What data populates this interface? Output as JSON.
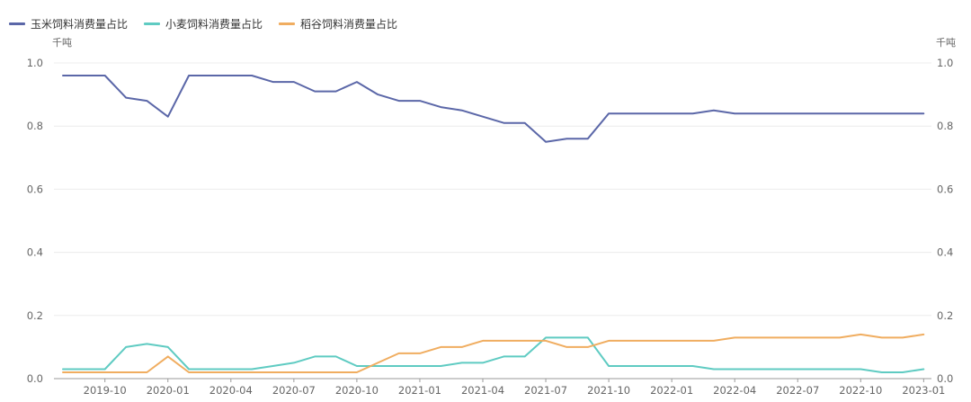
{
  "chart_data": {
    "type": "line",
    "x": [
      "2019-08",
      "2019-09",
      "2019-10",
      "2019-11",
      "2019-12",
      "2020-01",
      "2020-02",
      "2020-03",
      "2020-04",
      "2020-05",
      "2020-06",
      "2020-07",
      "2020-08",
      "2020-09",
      "2020-10",
      "2020-11",
      "2020-12",
      "2021-01",
      "2021-02",
      "2021-03",
      "2021-04",
      "2021-05",
      "2021-06",
      "2021-07",
      "2021-08",
      "2021-09",
      "2021-10",
      "2021-11",
      "2021-12",
      "2022-01",
      "2022-02",
      "2022-03",
      "2022-04",
      "2022-05",
      "2022-06",
      "2022-07",
      "2022-08",
      "2022-09",
      "2022-10",
      "2022-11",
      "2022-12",
      "2023-01"
    ],
    "series": [
      {
        "name": "玉米饲料消费量占比",
        "color": "#5b67a8",
        "values": [
          0.96,
          0.96,
          0.96,
          0.89,
          0.88,
          0.83,
          0.96,
          0.96,
          0.96,
          0.96,
          0.94,
          0.94,
          0.91,
          0.91,
          0.94,
          0.9,
          0.88,
          0.88,
          0.86,
          0.85,
          0.83,
          0.81,
          0.81,
          0.75,
          0.76,
          0.76,
          0.84,
          0.84,
          0.84,
          0.84,
          0.84,
          0.85,
          0.84,
          0.84,
          0.84,
          0.84,
          0.84,
          0.84,
          0.84,
          0.84,
          0.84,
          0.84
        ]
      },
      {
        "name": "小麦饲料消费量占比",
        "color": "#5fcbc2",
        "values": [
          0.03,
          0.03,
          0.03,
          0.1,
          0.11,
          0.1,
          0.03,
          0.03,
          0.03,
          0.03,
          0.04,
          0.05,
          0.07,
          0.07,
          0.04,
          0.04,
          0.04,
          0.04,
          0.04,
          0.05,
          0.05,
          0.07,
          0.07,
          0.13,
          0.13,
          0.13,
          0.04,
          0.04,
          0.04,
          0.04,
          0.04,
          0.03,
          0.03,
          0.03,
          0.03,
          0.03,
          0.03,
          0.03,
          0.03,
          0.02,
          0.02,
          0.03
        ]
      },
      {
        "name": "稻谷饲料消费量占比",
        "color": "#f0ad60",
        "values": [
          0.02,
          0.02,
          0.02,
          0.02,
          0.02,
          0.07,
          0.02,
          0.02,
          0.02,
          0.02,
          0.02,
          0.02,
          0.02,
          0.02,
          0.02,
          0.05,
          0.08,
          0.08,
          0.1,
          0.1,
          0.12,
          0.12,
          0.12,
          0.12,
          0.1,
          0.1,
          0.12,
          0.12,
          0.12,
          0.12,
          0.12,
          0.12,
          0.13,
          0.13,
          0.13,
          0.13,
          0.13,
          0.13,
          0.14,
          0.13,
          0.13,
          0.14
        ]
      }
    ],
    "x_tick_labels": [
      "2019-10",
      "2020-01",
      "2020-04",
      "2020-07",
      "2020-10",
      "2021-01",
      "2021-04",
      "2021-07",
      "2021-10",
      "2022-01",
      "2022-04",
      "2022-07",
      "2022-10",
      "2023-01"
    ],
    "y_ticks": [
      "0.0",
      "0.2",
      "0.4",
      "0.6",
      "0.8",
      "1.0"
    ],
    "ylim": [
      0,
      1.0
    ],
    "left_unit": "千吨",
    "right_unit": "千吨",
    "grid": "horizontal",
    "legend_position": "top-left"
  }
}
